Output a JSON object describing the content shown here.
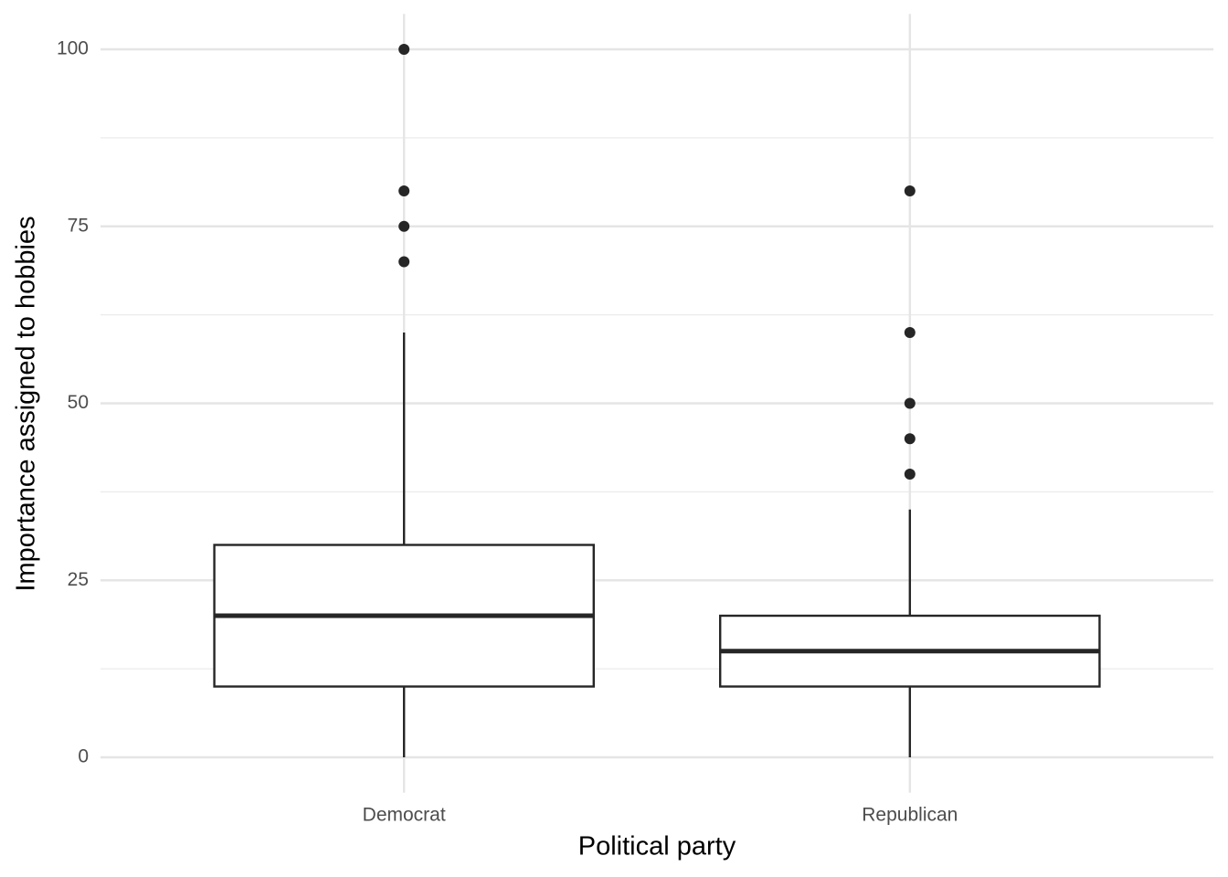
{
  "chart_data": {
    "type": "box",
    "x_label": "Political party",
    "y_label": "Importance assigned to hobbies",
    "categories": [
      "Democrat",
      "Republican"
    ],
    "boxes": [
      {
        "whisker_low": 0,
        "q1": 10,
        "median": 20,
        "q3": 30,
        "whisker_high": 60,
        "outliers": [
          70,
          75,
          80,
          100
        ]
      },
      {
        "whisker_low": 0,
        "q1": 10,
        "median": 15,
        "q3": 20,
        "whisker_high": 35,
        "outliers": [
          40,
          45,
          50,
          60,
          80
        ]
      }
    ],
    "color": "#262626",
    "ylim": [
      -5,
      105
    ],
    "yticks": [
      0,
      25,
      50,
      75,
      100
    ],
    "minor_yticks": [
      12.5,
      37.5,
      62.5,
      87.5
    ],
    "grid": true
  }
}
